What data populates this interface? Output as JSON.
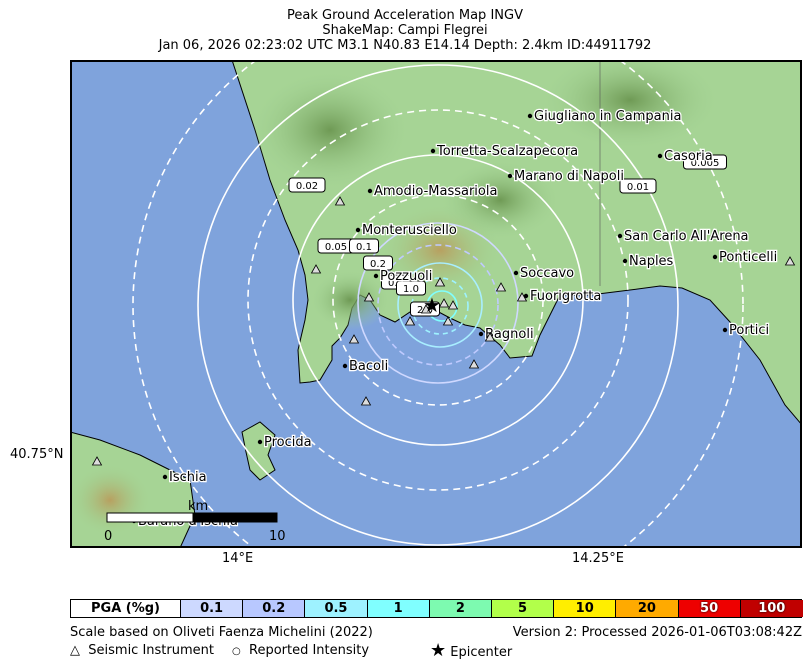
{
  "header": {
    "line1": "Peak Ground Acceleration Map INGV",
    "line2": "ShakeMap: Campi Flegrei",
    "line3": "Jan 06, 2026 02:23:02 UTC M3.1 N40.83 E14.14 Depth: 2.4km ID:44911792"
  },
  "axes": {
    "lat_label": "40.75°N",
    "lon_label_1": "14°E",
    "lon_label_2": "14.25°E"
  },
  "cities": [
    {
      "name": "Giugliano in Campania"
    },
    {
      "name": "Torretta-Scalzapecora"
    },
    {
      "name": "Casoria"
    },
    {
      "name": "Marano di Napoli"
    },
    {
      "name": "Amodio-Massariola"
    },
    {
      "name": "Monterusciello"
    },
    {
      "name": "San Carlo All'Arena"
    },
    {
      "name": "Naples"
    },
    {
      "name": "Ponticelli"
    },
    {
      "name": "Pozzuoli"
    },
    {
      "name": "Soccavo"
    },
    {
      "name": "Fuorigrotta"
    },
    {
      "name": "Bagnoli"
    },
    {
      "name": "Portici"
    },
    {
      "name": "Bacoli"
    },
    {
      "name": "Procida"
    },
    {
      "name": "Ischia"
    },
    {
      "name": "Barano d'Ischia"
    }
  ],
  "contour_labels": [
    "0.02",
    "0.05",
    "0.1",
    "0.2",
    "0.5",
    "1.0",
    "2.0",
    "0.01",
    "0.005"
  ],
  "scalebar": {
    "unit": "km",
    "start": "0",
    "end": "10"
  },
  "legend": {
    "title": "PGA (%g)",
    "items": [
      {
        "label": "0.1",
        "color": "#cdd9ff"
      },
      {
        "label": "0.2",
        "color": "#b8c8ff"
      },
      {
        "label": "0.5",
        "color": "#9ef2ff"
      },
      {
        "label": "1",
        "color": "#80ffff"
      },
      {
        "label": "2",
        "color": "#7dfab0"
      },
      {
        "label": "5",
        "color": "#b2ff4a"
      },
      {
        "label": "10",
        "color": "#ffee00"
      },
      {
        "label": "20",
        "color": "#ffaa00"
      },
      {
        "label": "50",
        "color": "#ee0000"
      },
      {
        "label": "100",
        "color": "#c00000"
      }
    ]
  },
  "footer": {
    "scale_note": "Scale based on Oliveti Faenza Michelini (2022)",
    "version": "Version 2: Processed 2026-01-06T03:08:42Z",
    "key_instrument": "Seismic Instrument",
    "key_intensity": "Reported Intensity",
    "key_epicenter": "Epicenter"
  },
  "colors": {
    "sea": "#7fa3dc",
    "land": "#9fd08f",
    "highland": "#7fae6a",
    "contour": "#ffffff"
  }
}
